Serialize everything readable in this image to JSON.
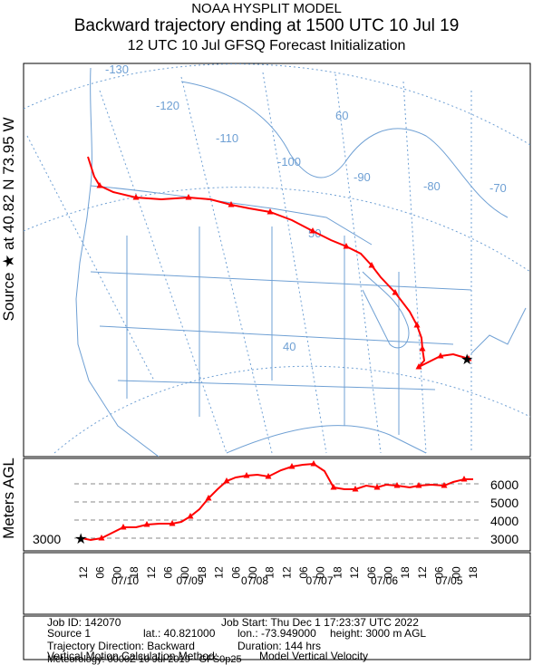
{
  "header": {
    "line1": "NOAA HYSPLIT MODEL",
    "line2": "Backward trajectory ending at 1500 UTC 10 Jul 19",
    "line3": "12 UTC 10 Jul    GFSQ  Forecast Initialization"
  },
  "side_label": "Source ★ at   40.82 N   73.95 W",
  "height_axis_label": "Meters AGL",
  "map": {
    "longitude_labels": [
      "-130",
      "-120",
      "-110",
      "-100",
      "-90",
      "-80",
      "-70"
    ],
    "latitude_labels": [
      "60",
      "50",
      "40"
    ],
    "line_color": "#6fa0d4",
    "trajectory_color": "#ff0000"
  },
  "height_panel": {
    "right_ticks": [
      "6000",
      "5000",
      "4000",
      "3000"
    ],
    "left_tick": "3000"
  },
  "time_axis": {
    "hour_labels": [
      "12",
      "06",
      "00",
      "18",
      "12",
      "06",
      "00",
      "18",
      "12",
      "06",
      "00",
      "18",
      "12",
      "06",
      "00",
      "18",
      "12",
      "06",
      "00",
      "18",
      "12",
      "06",
      "00",
      "18"
    ],
    "date_labels": [
      "07/10",
      "07/09",
      "07/08",
      "07/07",
      "07/06",
      "07/05"
    ]
  },
  "info": {
    "job_id": "Job ID: 142070",
    "job_start": "Job Start: Thu Dec  1 17:23:37 UTC 2022",
    "source": "Source 1",
    "lat": "lat.: 40.821000",
    "lon": "lon.: -73.949000",
    "height": "height: 3000 m AGL",
    "direction": "Trajectory Direction: Backward",
    "duration": "Duration: 144 hrs",
    "vertical": "Vertical Motion Calculation Method:",
    "vertical_value": "Model Vertical Velocity",
    "meteorology": "Meteorology: 0000Z 10 Jul 2019 - GFS0p25"
  }
}
